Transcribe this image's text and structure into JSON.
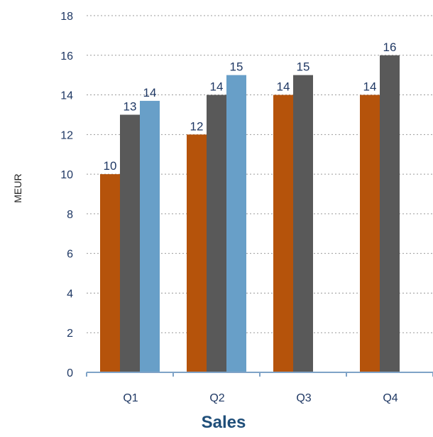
{
  "chart_data": {
    "type": "bar",
    "categories": [
      "Q1",
      "Q2",
      "Q3",
      "Q4"
    ],
    "series": [
      {
        "values": [
          10,
          12,
          14,
          14
        ],
        "labels": [
          "10",
          "12",
          "14",
          "14"
        ],
        "color": "#b5530b"
      },
      {
        "values": [
          13,
          14,
          15,
          16
        ],
        "labels": [
          "13",
          "14",
          "15",
          "16"
        ],
        "color": "#595959"
      },
      {
        "values": [
          13.7,
          15,
          null,
          null
        ],
        "labels": [
          "14",
          "15",
          "",
          ""
        ],
        "color": "#689fc8"
      }
    ],
    "title": "Sales",
    "xlabel": "",
    "ylabel": "MEUR",
    "ylim": [
      0,
      18
    ],
    "yticks": [
      "0",
      "2",
      "4",
      "6",
      "8",
      "10",
      "12",
      "14",
      "16",
      "18"
    ],
    "grid": true
  },
  "colors": {
    "text": "#1f3864",
    "title": "#1f4e79",
    "axis": "#7fa3c7",
    "grid": "#9a9a9a"
  }
}
